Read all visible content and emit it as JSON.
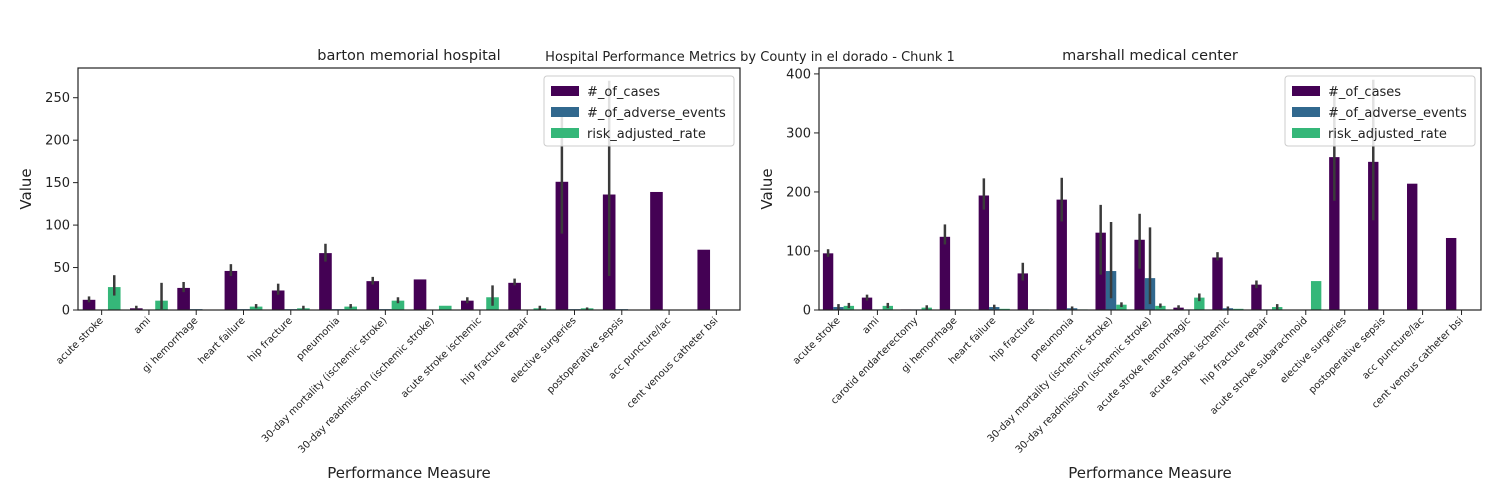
{
  "figure": {
    "suptitle": "Hospital Performance Metrics by County in el dorado - Chunk 1"
  },
  "colors": {
    "cases": "#440154",
    "adverse": "#31688e",
    "rate": "#35b779",
    "errorbar": "#3a3a3a",
    "axes": "#222222"
  },
  "chart_data": [
    {
      "type": "bar",
      "title": "barton memorial hospital",
      "xlabel": "Performance Measure",
      "ylabel": "Value",
      "ylim": [
        0,
        285
      ],
      "yticks": [
        0,
        50,
        100,
        150,
        200,
        250
      ],
      "grid": false,
      "legend_position": "top-right",
      "categories": [
        "acute stroke",
        "ami",
        "gi hemorrhage",
        "heart failure",
        "hip fracture",
        "pneumonia",
        "30-day mortality (ischemic stroke)",
        "30-day readmission (ischemic stroke)",
        "acute stroke ischemic",
        "hip fracture repair",
        "elective surgeries",
        "postoperative sepsis",
        "acc puncture/lac",
        "cent venous catheter bsi"
      ],
      "series": [
        {
          "name": "#_of_cases",
          "key": "cases",
          "values": [
            12,
            2,
            26,
            46,
            23,
            67,
            34,
            36,
            11,
            32,
            151,
            136,
            139,
            71
          ],
          "err_low": [
            9,
            1,
            21,
            40,
            18,
            57,
            30,
            null,
            8,
            29,
            90,
            40,
            null,
            null
          ],
          "err_high": [
            16,
            5,
            33,
            54,
            31,
            78,
            39,
            null,
            15,
            37,
            228,
            270,
            null,
            null
          ]
        },
        {
          "name": "#_of_adverse_events",
          "key": "adverse",
          "values": [
            0,
            0,
            1,
            1,
            1,
            1,
            1,
            0,
            0,
            0,
            1,
            1,
            0,
            0
          ],
          "err_low": [
            null,
            null,
            null,
            null,
            null,
            null,
            null,
            null,
            null,
            null,
            null,
            null,
            null,
            null
          ],
          "err_high": [
            null,
            null,
            null,
            null,
            null,
            null,
            null,
            null,
            null,
            null,
            null,
            null,
            null,
            null
          ]
        },
        {
          "name": "risk_adjusted_rate",
          "key": "rate",
          "values": [
            27,
            11,
            0,
            4,
            2,
            4,
            11,
            5,
            15,
            2,
            2,
            0,
            0,
            0
          ],
          "err_low": [
            17,
            1,
            null,
            2,
            1,
            2,
            8,
            null,
            5,
            0,
            0,
            null,
            null,
            null
          ],
          "err_high": [
            41,
            32,
            null,
            7,
            5,
            7,
            15,
            null,
            29,
            5,
            3,
            null,
            null,
            null
          ]
        }
      ]
    },
    {
      "type": "bar",
      "title": "marshall medical center",
      "xlabel": "Performance Measure",
      "ylabel": "Value",
      "ylim": [
        0,
        410
      ],
      "yticks": [
        0,
        100,
        200,
        300,
        400
      ],
      "grid": false,
      "legend_position": "top-right",
      "categories": [
        "acute stroke",
        "ami",
        "carotid endarterectomy",
        "gi hemorrhage",
        "heart failure",
        "hip fracture",
        "pneumonia",
        "30-day mortality (ischemic stroke)",
        "30-day readmission (ischemic stroke)",
        "acute stroke hemorrhagic",
        "acute stroke ischemic",
        "hip fracture repair",
        "acute stroke subarachnoid",
        "elective surgeries",
        "postoperative sepsis",
        "acc puncture/lac",
        "cent venous catheter bsi"
      ],
      "series": [
        {
          "name": "#_of_cases",
          "key": "cases",
          "values": [
            96,
            21,
            1,
            124,
            194,
            62,
            187,
            131,
            119,
            4,
            89,
            43,
            0,
            259,
            251,
            214,
            122
          ],
          "err_low": [
            90,
            16,
            null,
            111,
            170,
            50,
            150,
            60,
            70,
            2,
            84,
            37,
            null,
            185,
            152,
            null,
            null
          ],
          "err_high": [
            103,
            26,
            null,
            145,
            223,
            80,
            224,
            178,
            163,
            8,
            98,
            50,
            null,
            372,
            390,
            null,
            null
          ]
        },
        {
          "name": "#_of_adverse_events",
          "key": "adverse",
          "values": [
            5,
            1,
            1,
            1,
            5,
            1,
            3,
            66,
            54,
            1,
            3,
            1,
            0,
            0,
            0,
            0,
            0
          ],
          "err_low": [
            1,
            null,
            null,
            null,
            2,
            null,
            1,
            20,
            10,
            null,
            1,
            null,
            null,
            null,
            null,
            null,
            null
          ],
          "err_high": [
            10,
            null,
            null,
            null,
            9,
            null,
            6,
            149,
            140,
            null,
            6,
            null,
            null,
            null,
            null,
            null,
            null
          ]
        },
        {
          "name": "risk_adjusted_rate",
          "key": "rate",
          "values": [
            7,
            7,
            4,
            1,
            2,
            1,
            1,
            9,
            7,
            21,
            2,
            5,
            49,
            0,
            0,
            0,
            0
          ],
          "err_low": [
            3,
            3,
            1,
            null,
            null,
            null,
            null,
            5,
            4,
            15,
            null,
            1,
            null,
            null,
            null,
            null,
            null
          ],
          "err_high": [
            12,
            12,
            8,
            null,
            null,
            null,
            null,
            13,
            11,
            28,
            null,
            10,
            null,
            null,
            null,
            null,
            null
          ]
        }
      ]
    }
  ]
}
